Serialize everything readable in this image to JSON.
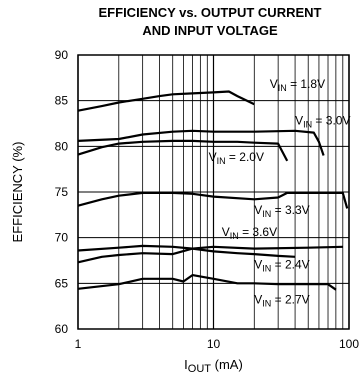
{
  "chart_data": {
    "type": "line",
    "title_line1": "EFFICIENCY vs. OUTPUT CURRENT",
    "title_line2": "AND INPUT VOLTAGE",
    "xlabel": {
      "main": "I",
      "sub": "OUT",
      "rest": " (mA)"
    },
    "ylabel": "EFFICIENCY (%)",
    "x_scale": "log",
    "xlim": [
      1,
      100
    ],
    "ylim": [
      60,
      90
    ],
    "x_ticks": [
      1,
      10,
      100
    ],
    "x_tick_labels": [
      "1",
      "10",
      "100"
    ],
    "y_ticks": [
      60,
      65,
      70,
      75,
      80,
      85,
      90
    ],
    "y_tick_labels": [
      "60",
      "65",
      "70",
      "75",
      "80",
      "85",
      "90"
    ],
    "grid": true,
    "series": [
      {
        "name": "V_IN = 1.8V",
        "label": {
          "main": "V",
          "sub": "IN",
          "rest": " = 1.8V"
        },
        "x": [
          1,
          1.5,
          2,
          3,
          4,
          5,
          7,
          10,
          13,
          15,
          20
        ],
        "y": [
          83.9,
          84.4,
          84.8,
          85.2,
          85.5,
          85.7,
          85.8,
          85.9,
          86.0,
          85.5,
          84.6
        ]
      },
      {
        "name": "V_IN = 3.0V",
        "label": {
          "main": "V",
          "sub": "IN",
          "rest": " = 3.0V"
        },
        "x": [
          1,
          2,
          3,
          5,
          7,
          10,
          20,
          40,
          55,
          60,
          65
        ],
        "y": [
          80.6,
          80.8,
          81.3,
          81.6,
          81.7,
          81.6,
          81.6,
          81.7,
          81.5,
          80.5,
          79.0
        ]
      },
      {
        "name": "V_IN = 2.0V",
        "label": {
          "main": "V",
          "sub": "IN",
          "rest": " = 2.0V"
        },
        "x": [
          1,
          1.5,
          2,
          3,
          5,
          7,
          10,
          15,
          20,
          30,
          35
        ],
        "y": [
          79.1,
          79.9,
          80.3,
          80.5,
          80.6,
          80.6,
          80.5,
          80.5,
          80.4,
          80.3,
          78.4
        ]
      },
      {
        "name": "V_IN = 3.3V",
        "label": {
          "main": "V",
          "sub": "IN",
          "rest": " = 3.3V"
        },
        "x": [
          1,
          1.5,
          2,
          3,
          5,
          7,
          10,
          20,
          30,
          35,
          50,
          90,
          97
        ],
        "y": [
          73.5,
          74.2,
          74.6,
          74.9,
          74.9,
          74.8,
          74.5,
          74.2,
          74.4,
          74.9,
          74.9,
          74.9,
          73.2
        ]
      },
      {
        "name": "V_IN = 3.6V",
        "label": {
          "main": "V",
          "sub": "IN",
          "rest": " = 3.6V"
        },
        "x": [
          1,
          2,
          3,
          5,
          7,
          10,
          20,
          50,
          90
        ],
        "y": [
          68.6,
          68.9,
          69.1,
          69.0,
          68.8,
          69.0,
          68.8,
          68.9,
          69.0
        ]
      },
      {
        "name": "V_IN = 2.4V",
        "label": {
          "main": "V",
          "sub": "IN",
          "rest": " = 2.4V"
        },
        "x": [
          1,
          1.5,
          2,
          3,
          5,
          7,
          10,
          15,
          20,
          30,
          40
        ],
        "y": [
          67.3,
          67.9,
          68.1,
          68.3,
          68.2,
          68.8,
          68.5,
          68.3,
          68.2,
          68.0,
          67.9
        ]
      },
      {
        "name": "V_IN = 2.7V",
        "label": {
          "main": "V",
          "sub": "IN",
          "rest": " = 2.7V"
        },
        "x": [
          1,
          2,
          3,
          5,
          6,
          7,
          10,
          15,
          20,
          30,
          50,
          70,
          80
        ],
        "y": [
          64.4,
          64.9,
          65.5,
          65.5,
          65.2,
          65.9,
          65.5,
          65.0,
          65.0,
          64.9,
          64.9,
          64.9,
          64.3
        ]
      }
    ],
    "labels": [
      {
        "series": "V_IN = 1.8V",
        "x": 26,
        "y": 86.4
      },
      {
        "series": "V_IN = 3.0V",
        "x": 40,
        "y": 82.4
      },
      {
        "series": "V_IN = 2.0V",
        "x": 9.2,
        "y": 78.4
      },
      {
        "series": "V_IN = 3.3V",
        "x": 20,
        "y": 72.6
      },
      {
        "series": "V_IN = 3.6V",
        "x": 11.5,
        "y": 70.2
      },
      {
        "series": "V_IN = 2.4V",
        "x": 20,
        "y": 66.6
      },
      {
        "series": "V_IN = 2.7V",
        "x": 20,
        "y": 62.8
      }
    ],
    "colors": {
      "axis": "#000000",
      "grid": "#000000",
      "line": "#000000"
    }
  }
}
